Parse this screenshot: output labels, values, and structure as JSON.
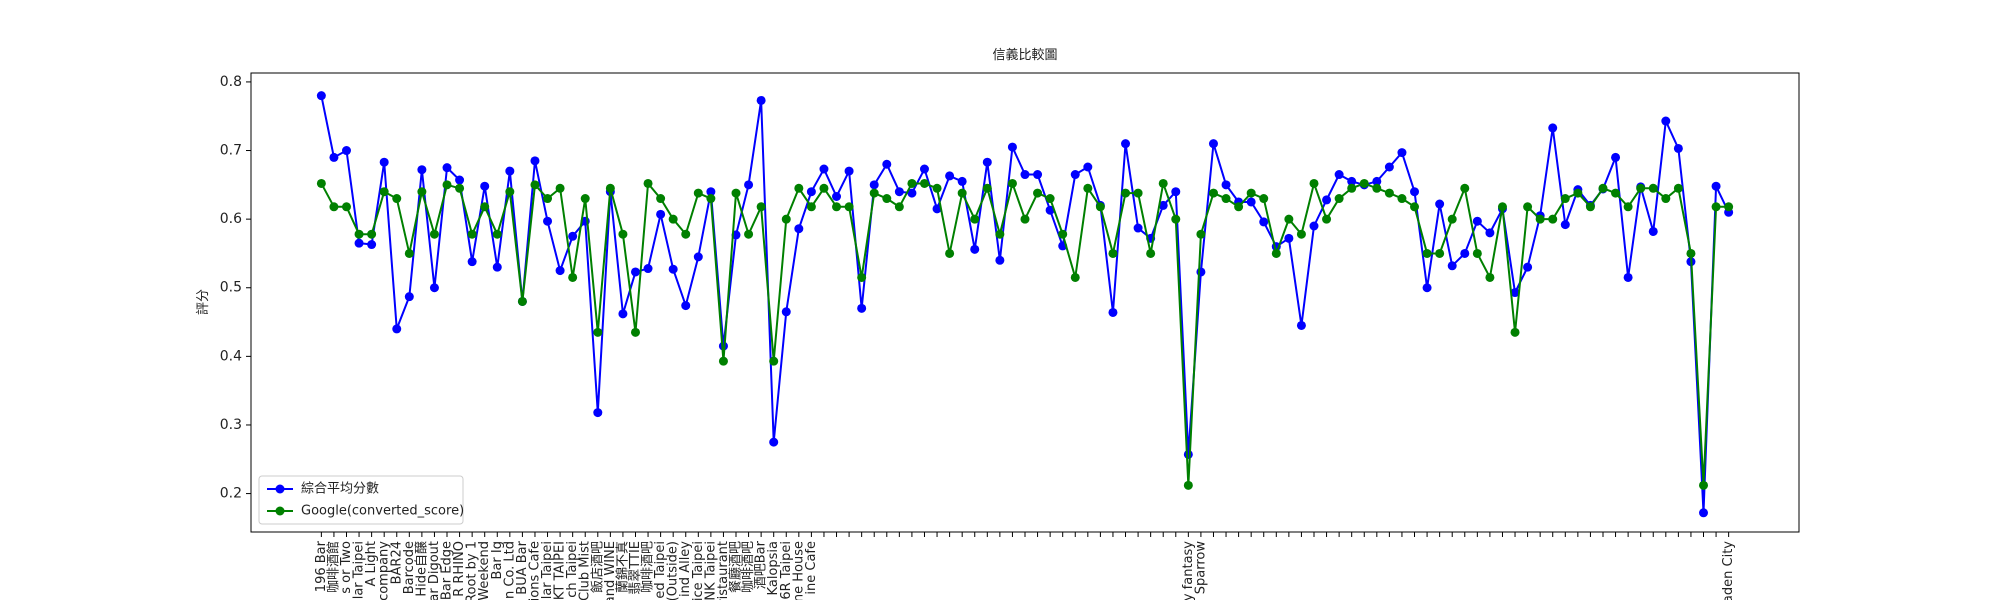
{
  "chart_data": {
    "type": "line",
    "title": "信義比較圖",
    "y_label": "評分",
    "categories": [
      "196 Bar",
      "咖啡酒館",
      "s or Two",
      "lar Taipei",
      "A Light",
      "company",
      "BAR24",
      "Barcode",
      "Hide自醸",
      "ar Digout",
      "Bar Edge",
      "R RHINO",
      "Root by 1",
      "Weekend",
      "Bar Ig",
      "n Co. Ltd",
      "BUA Bar",
      "ions Cafe",
      "lar Taipei",
      "KT TAIPEI",
      "ch Taipei",
      "Club Mist",
      "飯店酒吧",
      "and WINE",
      "蘭錦不真",
      "翡翠TTIE",
      "咖啡酒吧",
      "ed Taipei",
      "(Outside)",
      "ind Alley",
      "ice Taipei",
      "INK Taipei",
      "ristaurant",
      "餐廳酒吧",
      "咖啡酒吧",
      "酒吧Bar",
      "Kalopsia",
      "6R Taipei",
      "ne House",
      "ine Cafe",
      null,
      null,
      null,
      null,
      null,
      null,
      null,
      null,
      null,
      null,
      null,
      null,
      null,
      null,
      null,
      null,
      null,
      null,
      null,
      null,
      null,
      null,
      null,
      null,
      null,
      null,
      null,
      null,
      null,
      "y fantasy",
      "Sparrow",
      null,
      null,
      null,
      null,
      null,
      null,
      null,
      null,
      null,
      null,
      null,
      null,
      null,
      null,
      null,
      null,
      null,
      null,
      null,
      null,
      null,
      null,
      null,
      null,
      null,
      null,
      null,
      null,
      null,
      null,
      null,
      null,
      null,
      null,
      null,
      null,
      null,
      null,
      null,
      null,
      null,
      "aden City"
    ],
    "series": [
      {
        "name": "綜合平均分數",
        "color": "#0000ff",
        "values": [
          0.78,
          0.69,
          0.7,
          0.565,
          0.563,
          0.683,
          0.44,
          0.487,
          0.672,
          0.5,
          0.675,
          0.657,
          0.538,
          0.648,
          0.53,
          0.67,
          0.48,
          0.685,
          0.597,
          0.525,
          0.575,
          0.597,
          0.318,
          0.64,
          0.462,
          0.523,
          0.528,
          0.607,
          0.527,
          0.474,
          0.545,
          0.64,
          0.415,
          0.577,
          0.65,
          0.773,
          0.275,
          0.465,
          0.586,
          0.64,
          0.673,
          0.633,
          0.67,
          0.47,
          0.65,
          0.68,
          0.64,
          0.638,
          0.673,
          0.615,
          0.663,
          0.655,
          0.556,
          0.683,
          0.54,
          0.705,
          0.665,
          0.665,
          0.613,
          0.561,
          0.665,
          0.676,
          0.62,
          0.464,
          0.71,
          0.587,
          0.572,
          0.62,
          0.64,
          0.257,
          0.523,
          0.71,
          0.65,
          0.625,
          0.625,
          0.596,
          0.56,
          0.572,
          0.445,
          0.59,
          0.628,
          0.665,
          0.655,
          0.65,
          0.655,
          0.676,
          0.697,
          0.64,
          0.5,
          0.622,
          0.532,
          0.55,
          0.597,
          0.58,
          0.615,
          0.493,
          0.53,
          0.605,
          0.733,
          0.592,
          0.643,
          0.62,
          0.644,
          0.69,
          0.515,
          0.647,
          0.582,
          0.743,
          0.703,
          0.538,
          0.172,
          0.648,
          0.61
        ]
      },
      {
        "name": "Google(converted_score)",
        "color": "#008000",
        "values": [
          0.652,
          0.618,
          0.618,
          0.578,
          0.578,
          0.64,
          0.63,
          0.55,
          0.64,
          0.578,
          0.65,
          0.645,
          0.578,
          0.618,
          0.578,
          0.64,
          0.48,
          0.65,
          0.63,
          0.645,
          0.515,
          0.63,
          0.435,
          0.645,
          0.578,
          0.435,
          0.652,
          0.63,
          0.6,
          0.578,
          0.638,
          0.63,
          0.393,
          0.638,
          0.578,
          0.618,
          0.393,
          0.6,
          0.645,
          0.618,
          0.645,
          0.618,
          0.618,
          0.515,
          0.638,
          0.63,
          0.618,
          0.652,
          0.652,
          0.645,
          0.55,
          0.638,
          0.6,
          0.645,
          0.578,
          0.652,
          0.6,
          0.638,
          0.63,
          0.578,
          0.515,
          0.645,
          0.618,
          0.55,
          0.638,
          0.638,
          0.55,
          0.652,
          0.6,
          0.212,
          0.578,
          0.638,
          0.63,
          0.618,
          0.638,
          0.63,
          0.55,
          0.6,
          0.578,
          0.652,
          0.6,
          0.63,
          0.645,
          0.652,
          0.645,
          0.638,
          0.63,
          0.618,
          0.55,
          0.55,
          0.6,
          0.645,
          0.55,
          0.515,
          0.618,
          0.435,
          0.618,
          0.6,
          0.6,
          0.63,
          0.638,
          0.618,
          0.645,
          0.638,
          0.618,
          0.645,
          0.645,
          0.63,
          0.645,
          0.55,
          0.212,
          0.618,
          0.618
        ]
      }
    ],
    "ylim": [
      0.144,
      0.813
    ],
    "yticks": [
      0.2,
      0.3,
      0.4,
      0.5,
      0.6,
      0.7,
      0.8
    ],
    "legend": "lower left"
  }
}
